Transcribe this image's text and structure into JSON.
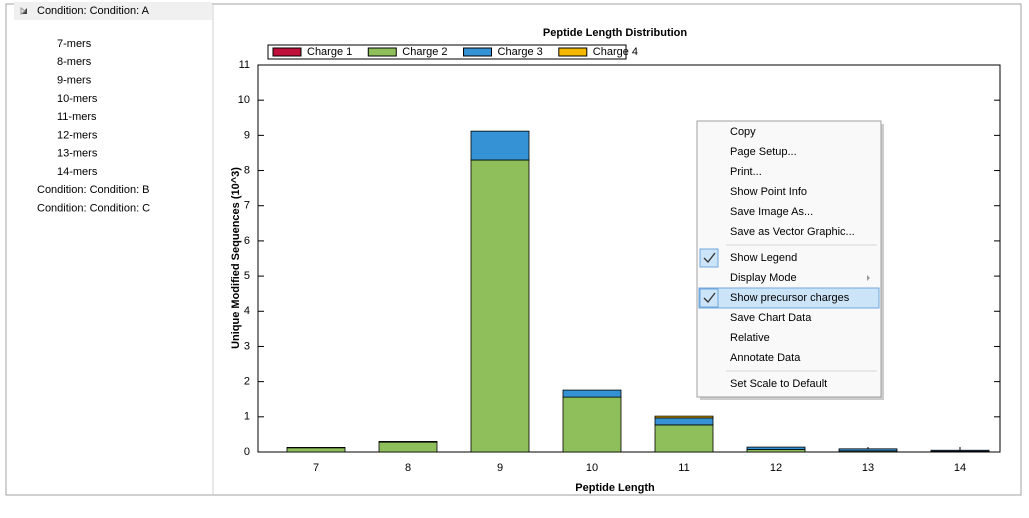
{
  "tree": [
    {
      "label": "Condition: Condition: A",
      "children": [
        "7-mers",
        "8-mers",
        "9-mers",
        "10-mers",
        "11-mers",
        "12-mers",
        "13-mers",
        "14-mers"
      ]
    },
    {
      "label": "Condition: Condition: B",
      "children": []
    },
    {
      "label": "Condition: Condition: C",
      "children": []
    }
  ],
  "chart_data": {
    "type": "stacked_bar",
    "title": "Peptide Length Distribution",
    "x_label": "Peptide Length",
    "y_label": "Unique Modified Sequences (10^3)",
    "categories": [
      "7",
      "8",
      "9",
      "10",
      "11",
      "12",
      "13",
      "14"
    ],
    "series": [
      {
        "name": "Charge 1",
        "color": "#c0103a",
        "values": [
          0,
          0,
          0,
          0,
          0,
          0,
          0,
          0
        ]
      },
      {
        "name": "Charge 2",
        "color": "#8fbf5b",
        "values": [
          0.12,
          0.28,
          8.3,
          1.56,
          0.77,
          0.07,
          0.03,
          0.02
        ]
      },
      {
        "name": "Charge 3",
        "color": "#3592d4",
        "values": [
          0.01,
          0.02,
          0.82,
          0.2,
          0.2,
          0.07,
          0.06,
          0.03
        ]
      },
      {
        "name": "Charge 4",
        "color": "#f5b800",
        "values": [
          0,
          0,
          0,
          0,
          0.05,
          0,
          0,
          0
        ]
      }
    ],
    "ylim": [
      0,
      11
    ],
    "yticks": [
      0,
      1,
      2,
      3,
      4,
      5,
      6,
      7,
      8,
      9,
      10,
      11
    ],
    "grid": false,
    "legend": "top"
  },
  "context_menu": {
    "groups": [
      [
        {
          "label": "Copy"
        },
        {
          "label": "Page Setup..."
        },
        {
          "label": "Print..."
        },
        {
          "label": "Show Point Info"
        },
        {
          "label": "Save Image As..."
        },
        {
          "label": "Save as Vector Graphic..."
        }
      ],
      [
        {
          "label": "Show Legend",
          "checked": true
        },
        {
          "label": "Display Mode",
          "disabled": true,
          "submenu": true
        },
        {
          "label": "Show precursor charges",
          "checked": true,
          "highlighted": true
        },
        {
          "label": "Save Chart Data"
        },
        {
          "label": "Relative"
        },
        {
          "label": "Annotate Data"
        }
      ],
      [
        {
          "label": "Set Scale to Default"
        }
      ]
    ]
  }
}
